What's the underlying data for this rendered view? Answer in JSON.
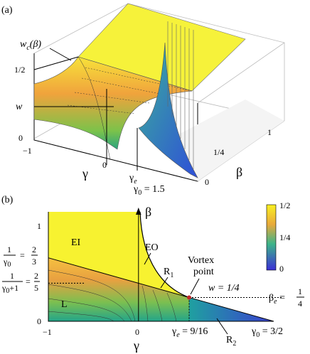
{
  "panel_a": {
    "label": "(a)",
    "wc": {
      "base": "w",
      "sub": "c",
      "rest": "(β)"
    },
    "z_ticks": [
      "1/2",
      "w",
      "0"
    ],
    "x_ticks": [
      "−1",
      "0"
    ],
    "x_label": "γ",
    "gamma_e": {
      "base": "γ",
      "sub": "e"
    },
    "gamma_0": {
      "base": "γ",
      "sub": "0",
      "rest": " = 1.5"
    },
    "y_ticks": [
      "1/4",
      "1",
      "0"
    ],
    "y_label": "β"
  },
  "panel_b": {
    "label": "(b)",
    "y_label": "β",
    "x_label": "γ",
    "y_ticks": [
      "1",
      "0"
    ],
    "x_ticks": [
      "−1",
      "0"
    ],
    "frac_a": {
      "num": "1",
      "den_base": "γ",
      "den_sub": "0",
      "eq": "=",
      "val_num": "2",
      "val_den": "3"
    },
    "frac_b": {
      "num": "1",
      "den_base": "γ",
      "den_sub": "0",
      "den_rest": "+1",
      "eq": "=",
      "val_num": "2",
      "val_den": "5"
    },
    "regions": [
      "EI",
      "EO",
      "L"
    ],
    "r1": {
      "base": "R",
      "sub": "1"
    },
    "r2": {
      "base": "R",
      "sub": "2"
    },
    "vortex": [
      "Vortex",
      "point"
    ],
    "w_label": "w = 1/4",
    "gamma_e": {
      "base": "γ",
      "sub": "e",
      "rest": " = 9/16"
    },
    "gamma_0": {
      "base": "γ",
      "sub": "0",
      "rest": " = 3/2"
    },
    "beta_e": {
      "base": "β",
      "sub": "e",
      "eq": " = ",
      "num": "1",
      "den": "4"
    },
    "colorbar_ticks": [
      "1/2",
      "1/4",
      "0"
    ]
  }
}
